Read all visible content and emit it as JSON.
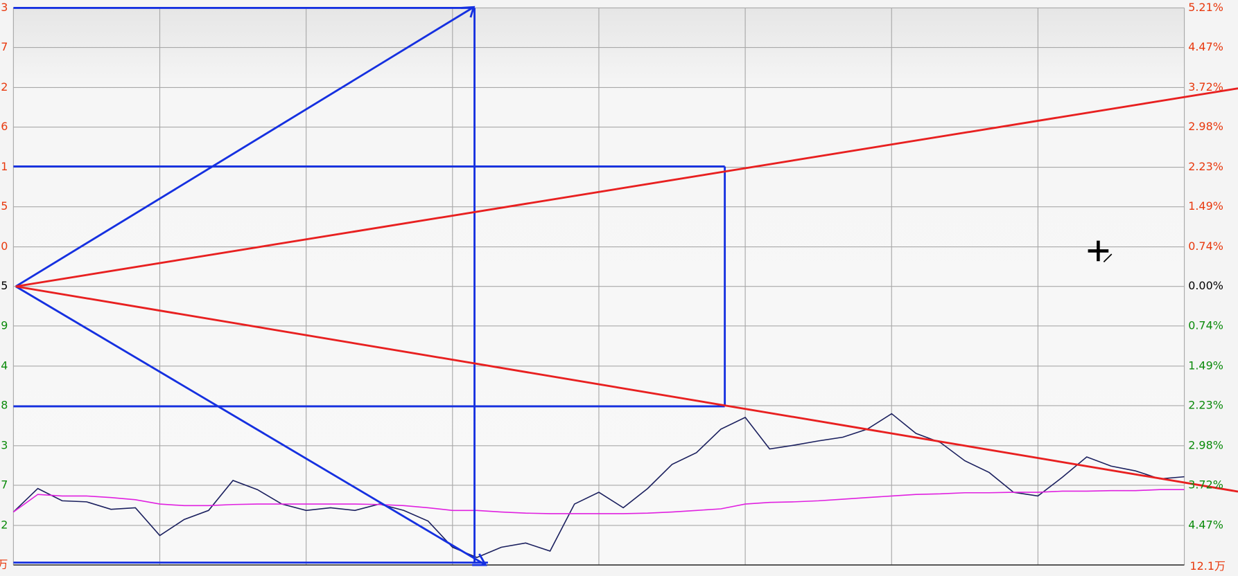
{
  "chart_data": {
    "type": "line",
    "x": [
      0,
      5,
      10,
      15,
      20,
      25,
      30,
      35,
      40,
      45,
      50,
      55,
      60,
      65,
      70,
      75,
      80,
      85,
      90,
      95,
      100,
      105,
      110,
      115,
      120,
      125,
      130,
      135,
      140,
      145,
      150,
      155,
      160,
      165,
      170,
      175,
      180,
      185,
      190,
      195,
      200,
      205,
      210,
      215,
      220,
      225,
      230,
      235,
      240
    ],
    "xlim": [
      0,
      240
    ],
    "xticks": [
      0,
      30,
      60,
      90,
      120,
      150,
      180,
      210,
      240
    ],
    "ylim": [
      -5.21,
      5.21
    ],
    "yticks": [
      {
        "value": 5.21,
        "label": "5.21%"
      },
      {
        "value": 4.47,
        "label": "4.47%"
      },
      {
        "value": 3.72,
        "label": "3.72%"
      },
      {
        "value": 2.98,
        "label": "2.98%"
      },
      {
        "value": 2.23,
        "label": "2.23%"
      },
      {
        "value": 1.49,
        "label": "1.49%"
      },
      {
        "value": 0.74,
        "label": "0.74%"
      },
      {
        "value": 0,
        "label": "0.00%"
      },
      {
        "value": -0.74,
        "label": "0.74%"
      },
      {
        "value": -1.49,
        "label": "1.49%"
      },
      {
        "value": -2.23,
        "label": "2.23%"
      },
      {
        "value": -2.98,
        "label": "2.98%"
      },
      {
        "value": -3.72,
        "label": "3.72%"
      },
      {
        "value": -4.47,
        "label": "4.47%"
      }
    ],
    "volume_label": "12.1万",
    "left_labels": [
      "3",
      "7",
      "2",
      "6",
      "1",
      "5",
      "0",
      "5",
      "9",
      "4",
      "8",
      "3",
      "7",
      "2",
      "万"
    ],
    "grid": true,
    "series": [
      {
        "color": "#1a1f5e",
        "values": [
          -4.22,
          -3.78,
          -4.01,
          -4.03,
          -4.17,
          -4.14,
          -4.66,
          -4.36,
          -4.19,
          -3.63,
          -3.8,
          -4.07,
          -4.19,
          -4.14,
          -4.19,
          -4.07,
          -4.19,
          -4.39,
          -4.88,
          -5.07,
          -4.88,
          -4.8,
          -4.95,
          -4.07,
          -3.85,
          -4.14,
          -3.78,
          -3.33,
          -3.11,
          -2.67,
          -2.45,
          -3.04,
          -2.97,
          -2.89,
          -2.82,
          -2.67,
          -2.38,
          -2.75,
          -2.92,
          -3.26,
          -3.48,
          -3.85,
          -3.92,
          -3.57,
          -3.19,
          -3.36,
          -3.45,
          -3.6,
          -3.56
        ]
      },
      {
        "color": "#e020e0",
        "values": [
          -4.22,
          -3.89,
          -3.92,
          -3.92,
          -3.95,
          -3.99,
          -4.07,
          -4.1,
          -4.1,
          -4.08,
          -4.07,
          -4.07,
          -4.07,
          -4.07,
          -4.07,
          -4.08,
          -4.1,
          -4.14,
          -4.19,
          -4.19,
          -4.22,
          -4.24,
          -4.25,
          -4.25,
          -4.25,
          -4.25,
          -4.24,
          -4.22,
          -4.19,
          -4.16,
          -4.07,
          -4.04,
          -4.03,
          -4.01,
          -3.98,
          -3.95,
          -3.92,
          -3.89,
          -3.88,
          -3.86,
          -3.86,
          -3.85,
          -3.85,
          -3.83,
          -3.83,
          -3.82,
          -3.82,
          -3.8,
          -3.8
        ]
      }
    ]
  }
}
